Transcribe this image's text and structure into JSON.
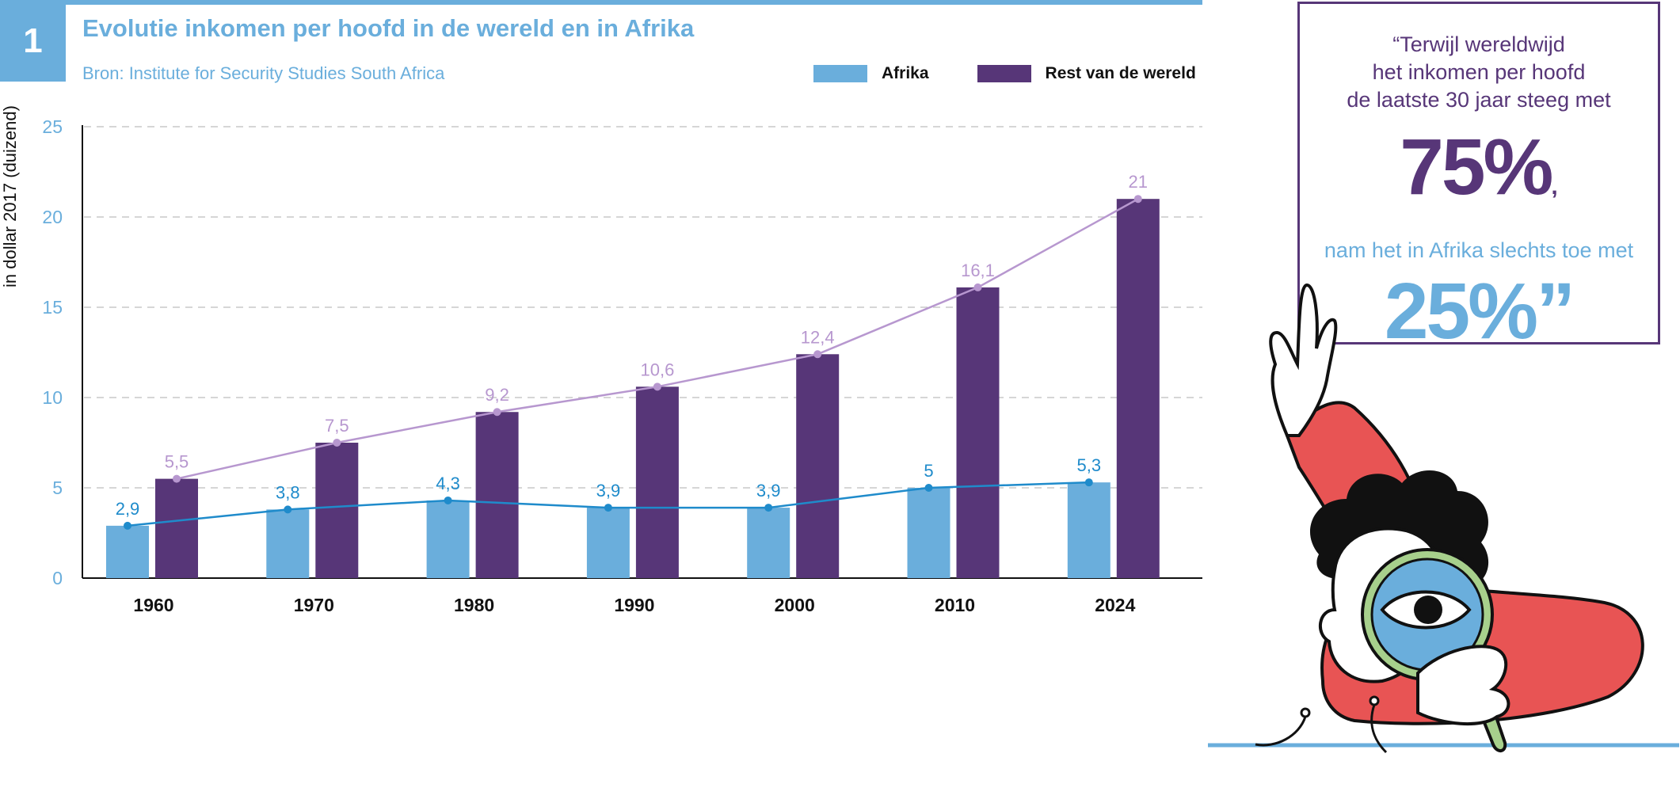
{
  "figure": {
    "number": "1",
    "title": "Evolutie inkomen per hoofd in de wereld en in Afrika",
    "source": "Bron: Institute for Security Studies South Africa"
  },
  "legend": {
    "afrika": "Afrika",
    "rest": "Rest van de wereld"
  },
  "colors": {
    "afrika_bar": "#6aaedc",
    "afrika_line": "#1f8bcb",
    "rest_bar": "#573678",
    "rest_line": "#b797cf",
    "accent": "#6aaedc"
  },
  "chart_data": {
    "type": "bar",
    "categories": [
      "1960",
      "1970",
      "1980",
      "1990",
      "2000",
      "2010",
      "2024"
    ],
    "series": [
      {
        "name": "Afrika",
        "values": [
          2.9,
          3.8,
          4.3,
          3.9,
          3.9,
          5,
          5.3
        ],
        "labels": [
          "2,9",
          "3,8",
          "4,3",
          "3,9",
          "3,9",
          "5",
          "5,3"
        ]
      },
      {
        "name": "Rest van de wereld",
        "values": [
          5.5,
          7.5,
          9.2,
          10.6,
          12.4,
          16.1,
          21
        ],
        "labels": [
          "5,5",
          "7,5",
          "9,2",
          "10,6",
          "12,4",
          "16,1",
          "21"
        ]
      }
    ],
    "overlay": "line connecting bar tops per series",
    "ylabel": "in dollar 2017 (duizend)",
    "ylim": [
      0,
      25
    ],
    "yticks": [
      0,
      5,
      10,
      15,
      20,
      25
    ],
    "grid": true
  },
  "quote": {
    "line1": "“Terwijl wereldwijd",
    "line2": "het inkomen per hoofd",
    "line3": "de laatste 30 jaar steeg met",
    "value1": "75%",
    "comma": ",",
    "line4": "nam het in Afrika slechts toe met",
    "value2": "25%”"
  }
}
